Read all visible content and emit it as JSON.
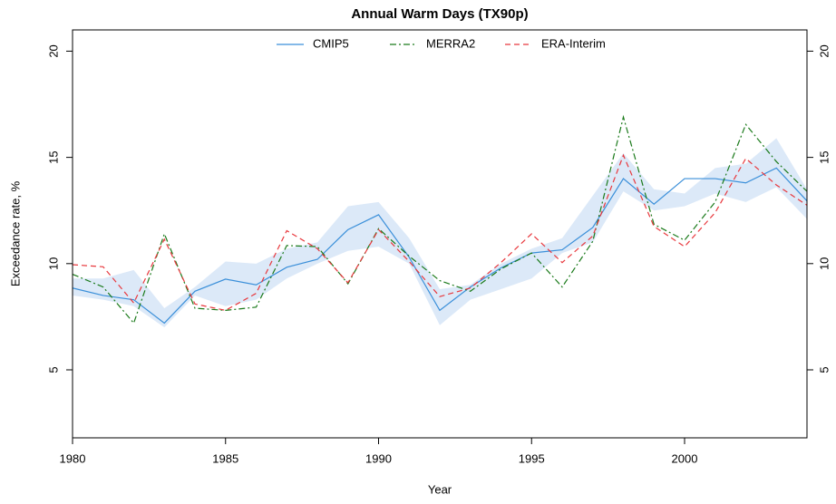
{
  "chart_data": {
    "type": "line",
    "title": "Annual Warm Days (TX90p)",
    "xlabel": "Year",
    "ylabel": "Exceedance rate, %",
    "x": [
      1980,
      1981,
      1982,
      1983,
      1984,
      1985,
      1986,
      1987,
      1988,
      1989,
      1990,
      1991,
      1992,
      1993,
      1994,
      1995,
      1996,
      1997,
      1998,
      1999,
      2000,
      2001,
      2002,
      2003,
      2004
    ],
    "series": [
      {
        "name": "CMIP5",
        "color": "#3a8fd9",
        "dash": "solid",
        "values": [
          8.85,
          8.5,
          8.3,
          7.2,
          8.7,
          9.27,
          9.0,
          9.83,
          10.2,
          11.6,
          12.3,
          10.3,
          7.8,
          8.9,
          9.8,
          10.5,
          10.65,
          11.7,
          14.0,
          12.8,
          14.0,
          14.0,
          13.8,
          14.5,
          12.95
        ]
      },
      {
        "name": "MERRA2",
        "color": "#1a7a1a",
        "dash": "dashdot",
        "values": [
          9.5,
          8.9,
          7.2,
          11.4,
          7.9,
          7.8,
          7.95,
          10.85,
          10.8,
          9.05,
          11.65,
          10.35,
          9.2,
          8.7,
          9.75,
          10.5,
          8.9,
          11.05,
          16.9,
          11.85,
          11.1,
          12.9,
          16.55,
          14.8,
          13.4
        ]
      },
      {
        "name": "ERA-Interim",
        "color": "#e8383d",
        "dash": "dashed",
        "values": [
          9.95,
          9.85,
          8.15,
          11.15,
          8.1,
          7.8,
          8.6,
          11.55,
          10.7,
          9.1,
          11.6,
          10.1,
          8.45,
          8.85,
          10.05,
          11.4,
          10.05,
          11.3,
          15.1,
          11.75,
          10.8,
          12.4,
          14.95,
          13.7,
          12.75
        ]
      }
    ],
    "band": {
      "color": "#dce9f8",
      "upper": [
        9.3,
        9.3,
        9.7,
        7.9,
        8.9,
        10.1,
        10.0,
        10.7,
        11.0,
        12.7,
        12.9,
        11.2,
        8.8,
        9.0,
        10.0,
        10.7,
        11.2,
        13.2,
        15.2,
        13.5,
        13.3,
        14.5,
        14.7,
        15.9,
        13.5
      ],
      "lower": [
        8.5,
        8.3,
        8.0,
        7.0,
        8.5,
        8.0,
        8.3,
        9.3,
        10.0,
        10.6,
        10.8,
        10.0,
        7.1,
        8.3,
        8.8,
        9.3,
        10.5,
        11.0,
        13.4,
        12.5,
        12.7,
        13.3,
        12.9,
        13.6,
        12.1
      ]
    },
    "xlim": [
      1980,
      2004
    ],
    "xticks": [
      1980,
      1985,
      1990,
      1995,
      2000
    ],
    "ylim": [
      1.8,
      21.0
    ],
    "yticks": [
      5,
      10,
      15,
      20
    ],
    "y2lim": [
      1.8,
      21.0
    ],
    "y2ticks": [
      5,
      10,
      15,
      20
    ],
    "legend": "top",
    "grid": false
  }
}
